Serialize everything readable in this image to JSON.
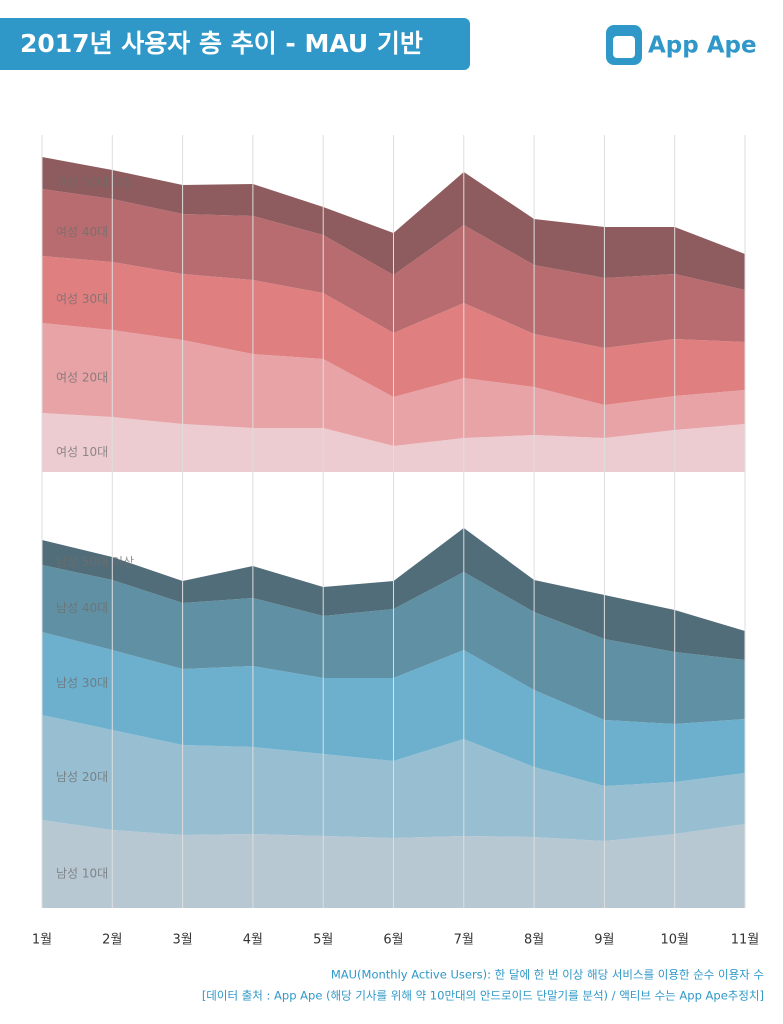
{
  "header": {
    "title": "2017년 사용자 층 추이 - MAU 기반",
    "logo": "App Ape"
  },
  "notes": [
    "MAU(Monthly Active Users): 한 달에 한 번 이상 해당 서비스를 이용한 순수 이용자 수",
    "[데이터 출처 : App Ape (해당 기사를 위해 약 10만대의 안드로이드 단말기를 분석) / 액티브 수는 App Ape추정치]"
  ],
  "chart_data": [
    {
      "type": "stacked-area",
      "series": [
        {
          "name": "여성 10대",
          "color": "#ecccd0",
          "values": [
            59,
            55,
            48,
            44,
            44,
            26,
            34,
            37,
            34,
            42,
            48
          ]
        },
        {
          "name": "여성 20대",
          "color": "#e8a3a7",
          "values": [
            90,
            87,
            84,
            74,
            69,
            49,
            60,
            48,
            33,
            34,
            34
          ]
        },
        {
          "name": "여성 30대",
          "color": "#e07f80",
          "values": [
            67,
            68,
            66,
            74,
            66,
            64,
            75,
            53,
            57,
            57,
            48
          ]
        },
        {
          "name": "여성 40대",
          "color": "#b86c6f",
          "values": [
            67,
            63,
            60,
            64,
            58,
            58,
            78,
            69,
            70,
            65,
            52
          ]
        },
        {
          "name": "여성 50대 이상",
          "color": "#8e5b5e",
          "values": [
            32,
            29,
            29,
            32,
            28,
            42,
            53,
            46,
            51,
            47,
            36
          ]
        }
      ]
    },
    {
      "type": "stacked-area",
      "categories": [
        "1월",
        "2월",
        "3월",
        "4월",
        "5월",
        "6월",
        "7월",
        "8월",
        "9월",
        "10월",
        "11월"
      ],
      "series": [
        {
          "name": "남성 10대",
          "color": "#b7c8d3",
          "values": [
            88,
            78,
            73,
            74,
            72,
            70,
            72,
            71,
            67,
            74,
            84
          ]
        },
        {
          "name": "남성 20대",
          "color": "#97bed1",
          "values": [
            105,
            100,
            90,
            87,
            82,
            77,
            97,
            70,
            55,
            52,
            51
          ]
        },
        {
          "name": "남성 30대",
          "color": "#6cb0cd",
          "values": [
            83,
            80,
            76,
            81,
            76,
            83,
            89,
            77,
            66,
            58,
            54
          ]
        },
        {
          "name": "남성 40대",
          "color": "#6090a4",
          "values": [
            67,
            70,
            66,
            68,
            62,
            69,
            78,
            78,
            81,
            72,
            59
          ]
        },
        {
          "name": "남성 50대 이상",
          "color": "#516d79",
          "values": [
            25,
            23,
            22,
            32,
            29,
            28,
            44,
            32,
            44,
            42,
            29
          ]
        }
      ]
    }
  ]
}
